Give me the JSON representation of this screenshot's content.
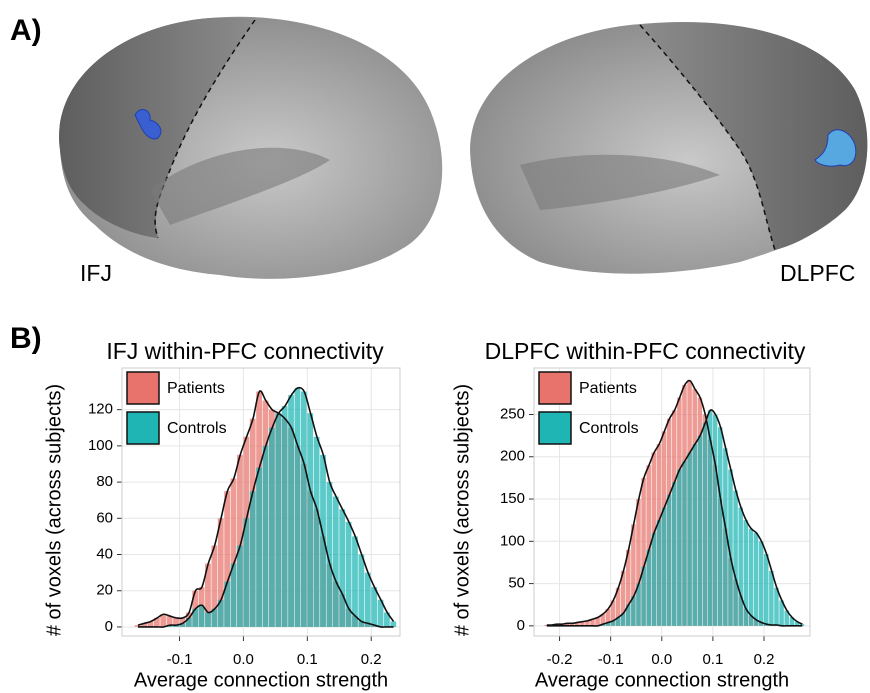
{
  "panel_labels": [
    "A)",
    "B)"
  ],
  "brain_labels": [
    "IFJ",
    "DLPFC"
  ],
  "chart_data": [
    {
      "type": "histogram",
      "title": "IFJ within-PFC connectivity",
      "xlabel": "Average connection strength",
      "ylabel": "# of voxels (across subjects)",
      "bins": [
        -0.17,
        -0.16,
        -0.15,
        -0.14,
        -0.13,
        -0.12,
        -0.11,
        -0.1,
        -0.09,
        -0.08,
        -0.07,
        -0.06,
        -0.05,
        -0.04,
        -0.03,
        -0.02,
        -0.01,
        0,
        0.01,
        0.02,
        0.03,
        0.04,
        0.05,
        0.06,
        0.07,
        0.08,
        0.09,
        0.1,
        0.11,
        0.12,
        0.13,
        0.14,
        0.15,
        0.16,
        0.17,
        0.18,
        0.19,
        0.2,
        0.21,
        0.22,
        0.23,
        0.24
      ],
      "series": [
        {
          "name": "Patients",
          "color": "#e8736c",
          "values": [
            1,
            2,
            3,
            5,
            7,
            6,
            5,
            5,
            8,
            20,
            22,
            35,
            45,
            60,
            75,
            82,
            95,
            105,
            115,
            130,
            125,
            120,
            118,
            115,
            110,
            100,
            90,
            75,
            65,
            50,
            35,
            25,
            18,
            10,
            6,
            3,
            2,
            1,
            0,
            0,
            0
          ]
        },
        {
          "name": "Controls",
          "color": "#1fb5b5",
          "values": [
            0,
            0,
            0,
            0,
            0,
            1,
            1,
            2,
            5,
            10,
            12,
            8,
            10,
            15,
            25,
            35,
            45,
            60,
            75,
            88,
            100,
            110,
            118,
            122,
            128,
            132,
            130,
            118,
            105,
            95,
            80,
            72,
            65,
            58,
            50,
            40,
            30,
            22,
            15,
            8,
            3
          ]
        }
      ],
      "xlim": [
        -0.19,
        0.245
      ],
      "xticks": [
        -0.1,
        {
          "value": 0,
          "label": "0.0"
        },
        0.1,
        0.2
      ],
      "ylim": [
        -5,
        143
      ],
      "yticks": [
        0,
        20,
        40,
        60,
        80,
        100,
        120
      ],
      "grid": true,
      "legend": "top-left"
    },
    {
      "type": "histogram",
      "title": "DLPFC within-PFC connectivity",
      "xlabel": "Average connection strength",
      "ylabel": "# of voxels (across subjects)",
      "bins": [
        -0.23,
        -0.22,
        -0.21,
        -0.2,
        -0.19,
        -0.18,
        -0.17,
        -0.16,
        -0.15,
        -0.14,
        -0.13,
        -0.12,
        -0.11,
        -0.1,
        -0.09,
        -0.08,
        -0.07,
        -0.06,
        -0.05,
        -0.04,
        -0.03,
        -0.02,
        -0.01,
        0,
        0.01,
        0.02,
        0.03,
        0.04,
        0.05,
        0.06,
        0.07,
        0.08,
        0.09,
        0.1,
        0.11,
        0.12,
        0.13,
        0.14,
        0.15,
        0.16,
        0.17,
        0.18,
        0.19,
        0.2,
        0.21,
        0.22,
        0.23,
        0.24,
        0.25,
        0.26,
        0.27,
        0.28
      ],
      "series": [
        {
          "name": "Patients",
          "color": "#e8736c",
          "values": [
            1,
            1,
            2,
            2,
            3,
            3,
            4,
            5,
            6,
            8,
            10,
            14,
            20,
            30,
            45,
            65,
            90,
            120,
            150,
            175,
            190,
            205,
            215,
            230,
            245,
            255,
            270,
            285,
            290,
            280,
            270,
            250,
            220,
            190,
            150,
            115,
            80,
            55,
            35,
            20,
            12,
            7,
            4,
            2,
            1,
            1,
            0,
            0,
            0,
            0,
            0
          ]
        },
        {
          "name": "Controls",
          "color": "#1fb5b5",
          "values": [
            0,
            0,
            0,
            0,
            0,
            0,
            0,
            0,
            0,
            0,
            0,
            2,
            4,
            6,
            10,
            15,
            25,
            35,
            50,
            70,
            90,
            110,
            125,
            140,
            155,
            170,
            185,
            195,
            205,
            215,
            225,
            240,
            255,
            250,
            235,
            210,
            185,
            160,
            140,
            125,
            115,
            110,
            100,
            85,
            65,
            45,
            30,
            18,
            10,
            5,
            2
          ]
        }
      ],
      "xlim": [
        -0.25,
        0.29
      ],
      "xticks": [
        -0.2,
        -0.1,
        {
          "value": 0,
          "label": "0.0"
        },
        0.1,
        0.2
      ],
      "ylim": [
        -12,
        305
      ],
      "yticks": [
        0,
        50,
        100,
        150,
        200,
        250
      ],
      "grid": true,
      "legend": "top-left"
    }
  ]
}
